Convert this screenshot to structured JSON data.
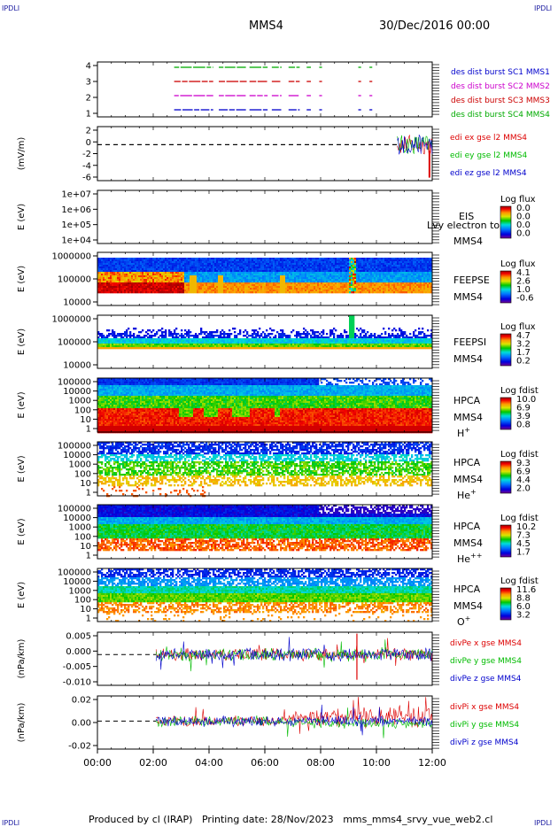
{
  "header": {
    "corner_label": "IPDLI",
    "spacecraft": "MMS4",
    "date_time": "30/Dec/2016 00:00"
  },
  "footer": {
    "produced_by": "Produced by cl (IRAP)",
    "printing_date": "Printing date: 28/Nov/2023",
    "file_name": "mms_mms4_srvy_vue_web2.cl"
  },
  "colors": {
    "mms1": "#0000cc",
    "mms2": "#cc00cc",
    "mms3": "#cc0000",
    "mms4": "#00aa00",
    "x": "#dd0000",
    "y": "#00bb00",
    "z": "#0000cc"
  },
  "chart_data": {
    "type": "multi-panel time series / spectrograms",
    "x_axis": {
      "range": [
        "00:00",
        "12:00"
      ],
      "tick_labels": [
        "00:00",
        "02:00",
        "04:00",
        "06:00",
        "08:00",
        "10:00",
        "12:00"
      ]
    },
    "panels": [
      {
        "id": "burst",
        "type": "availability",
        "yticks": [
          "4",
          "3",
          "2",
          "1"
        ],
        "legend": [
          {
            "text": "des dist burst SC1 MMS1",
            "color": "#0000cc"
          },
          {
            "text": "des dist burst SC2 MMS2",
            "color": "#cc00cc"
          },
          {
            "text": "des dist burst SC3 MMS3",
            "color": "#cc0000"
          },
          {
            "text": "des dist burst SC4 MMS4",
            "color": "#00aa00"
          }
        ],
        "intervals_hours": [
          [
            2.75,
            4.15
          ],
          [
            4.35,
            5.35
          ],
          [
            5.45,
            6.1
          ],
          [
            6.25,
            6.6
          ],
          [
            6.85,
            7.25
          ],
          [
            7.5,
            7.65
          ],
          [
            7.95,
            8.05
          ],
          [
            9.35,
            9.45
          ],
          [
            9.75,
            9.85
          ]
        ]
      },
      {
        "id": "edi",
        "type": "line",
        "ylabel": "(mV/m)",
        "yticks": [
          "2",
          "0",
          "-2",
          "-4",
          "-6"
        ],
        "ylim": [
          -6,
          3
        ],
        "data_start_hours": 10.75,
        "legend": [
          {
            "text": "edi ex gse l2 MMS4",
            "color": "#dd0000"
          },
          {
            "text": "edi ey gse l2 MMS4",
            "color": "#00bb00"
          },
          {
            "text": "edi ez gse l2 MMS4",
            "color": "#0000cc"
          }
        ]
      },
      {
        "id": "eis",
        "type": "spectrogram-empty",
        "ylabel": "E (eV)",
        "yticks": [
          "1e+07",
          "1e+06",
          "1e+05",
          "1e+04"
        ],
        "instrument": "EIS",
        "product": "Lvy electron to",
        "spacecraft": "MMS4",
        "cbar_title": "Log flux",
        "cbar_ticks": [
          "0.0",
          "0.0",
          "0.0",
          "0.0"
        ]
      },
      {
        "id": "feepse",
        "type": "spectrogram",
        "ylabel": "E (eV)",
        "yticks": [
          "1000000",
          "100000",
          "10000"
        ],
        "instrument": "FEEPSE",
        "spacecraft": "MMS4",
        "cbar_title": "Log flux",
        "cbar_ticks": [
          "4.1",
          "2.6",
          "1.0",
          "-0.6"
        ]
      },
      {
        "id": "feepsi",
        "type": "spectrogram",
        "ylabel": "E (eV)",
        "yticks": [
          "1000000",
          "100000",
          "10000"
        ],
        "instrument": "FEEPSI",
        "spacecraft": "MMS4",
        "cbar_title": "Log flux",
        "cbar_ticks": [
          "4.7",
          "3.2",
          "1.7",
          "0.2"
        ]
      },
      {
        "id": "hpca_h",
        "type": "spectrogram",
        "ylabel": "E (eV)",
        "yticks": [
          "100000",
          "10000",
          "1000",
          "100",
          "10",
          "1"
        ],
        "instrument": "HPCA",
        "spacecraft": "MMS4",
        "species": "H",
        "species_charge": "+",
        "cbar_title": "Log fdist",
        "cbar_ticks": [
          "10.0",
          "6.9",
          "3.9",
          "0.8"
        ]
      },
      {
        "id": "hpca_he1",
        "type": "spectrogram",
        "ylabel": "E (eV)",
        "yticks": [
          "100000",
          "10000",
          "1000",
          "100",
          "10",
          "1"
        ],
        "instrument": "HPCA",
        "spacecraft": "MMS4",
        "species": "He",
        "species_charge": "+",
        "cbar_title": "Log fdist",
        "cbar_ticks": [
          "9.3",
          "6.9",
          "4.4",
          "2.0"
        ]
      },
      {
        "id": "hpca_he2",
        "type": "spectrogram",
        "ylabel": "E (eV)",
        "yticks": [
          "100000",
          "10000",
          "1000",
          "100",
          "10",
          "1"
        ],
        "instrument": "HPCA",
        "spacecraft": "MMS4",
        "species": "He",
        "species_charge": "++",
        "cbar_title": "Log fdist",
        "cbar_ticks": [
          "10.2",
          "7.3",
          "4.5",
          "1.7"
        ]
      },
      {
        "id": "hpca_o",
        "type": "spectrogram",
        "ylabel": "E (eV)",
        "yticks": [
          "100000",
          "10000",
          "1000",
          "100",
          "10",
          "1"
        ],
        "instrument": "HPCA",
        "spacecraft": "MMS4",
        "species": "O",
        "species_charge": "+",
        "cbar_title": "Log fdist",
        "cbar_ticks": [
          "11.6",
          "8.8",
          "6.0",
          "3.2"
        ]
      },
      {
        "id": "divpe",
        "type": "line",
        "ylabel": "(nPa/km)",
        "yticks": [
          "0.005",
          "0.000",
          "-0.005",
          "-0.010"
        ],
        "ylim": [
          -0.011,
          0.008
        ],
        "data_start_hours": 2.1,
        "legend": [
          {
            "text": "divPe x gse MMS4",
            "color": "#dd0000"
          },
          {
            "text": "divPe y gse MMS4",
            "color": "#00bb00"
          },
          {
            "text": "divPe z gse MMS4",
            "color": "#0000cc"
          }
        ]
      },
      {
        "id": "divpi",
        "type": "line",
        "ylabel": "(nPa/km)",
        "yticks": [
          "0.02",
          "0.00",
          "-0.02"
        ],
        "ylim": [
          -0.03,
          0.027
        ],
        "data_start_hours": 2.1,
        "legend": [
          {
            "text": "divPi x gse MMS4",
            "color": "#dd0000"
          },
          {
            "text": "divPi y gse MMS4",
            "color": "#00bb00"
          },
          {
            "text": "divPi z gse MMS4",
            "color": "#0000cc"
          }
        ]
      }
    ]
  }
}
